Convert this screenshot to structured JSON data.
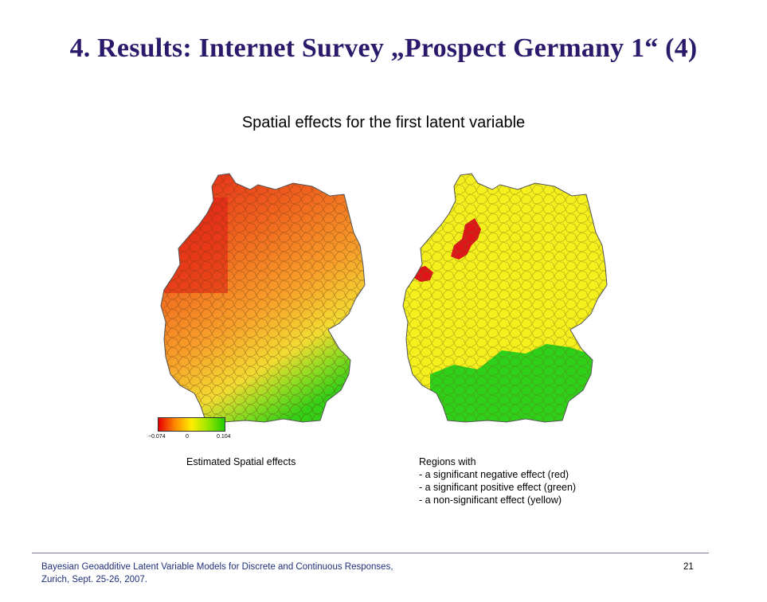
{
  "slide": {
    "title": "4. Results:  Internet Survey „Prospect Germany 1“ (4)",
    "subtitle": "Spatial effects for the first latent variable"
  },
  "left_map": {
    "caption": "Estimated Spatial effects",
    "legend": {
      "min_label": "−0.074",
      "mid_label": "0",
      "max_label": "0.104",
      "colors": [
        "#e60000",
        "#ff8800",
        "#ffee00",
        "#99e600",
        "#22cc00"
      ]
    },
    "fill_colors": {
      "northwest": "#e8301c",
      "north": "#f0641e",
      "center": "#f7a02a",
      "center_south": "#f2dc32",
      "south": "#33d017"
    }
  },
  "right_map": {
    "caption_lines": [
      "Regions with",
      "- a significant negative effect (red)",
      "- a significant positive effect (green)",
      "- a non-significant effect (yellow)"
    ],
    "fill_colors": {
      "nonsignificant": "#f5ef1e",
      "negative": "#e0151a",
      "positive": "#2fd01a"
    }
  },
  "footer": {
    "lines": [
      "Bayesian Geoadditive Latent Variable Models for Discrete and Continuous Responses,",
      "Zurich, Sept. 25-26, 2007."
    ],
    "page_number": "21"
  }
}
